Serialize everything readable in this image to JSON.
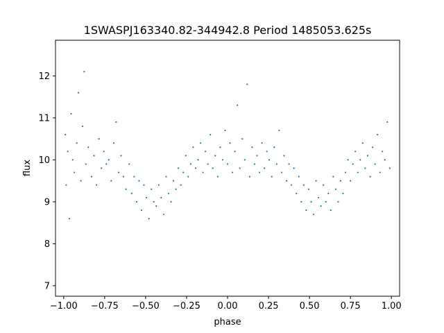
{
  "chart_data": {
    "type": "scatter",
    "title": "1SWASPJ163340.82-344942.8 Period 1485053.625s",
    "xlabel": "phase",
    "ylabel": "flux",
    "xlim": [
      -1.05,
      1.05
    ],
    "ylim": [
      6.75,
      12.85
    ],
    "x_ticks": [
      -1.0,
      -0.75,
      -0.5,
      -0.25,
      0.0,
      0.25,
      0.5,
      0.75,
      1.0
    ],
    "x_tick_labels": [
      "−1.00",
      "−0.75",
      "−0.50",
      "−0.25",
      "0.00",
      "0.25",
      "0.50",
      "0.75",
      "1.00"
    ],
    "y_ticks": [
      7,
      8,
      9,
      10,
      11,
      12
    ],
    "y_tick_labels": [
      "7",
      "8",
      "9",
      "10",
      "11",
      "12"
    ],
    "grid": false,
    "marker_color": "#1f77b4",
    "series": [
      {
        "points": [
          [
            -0.99,
            10.6
          ],
          [
            -0.985,
            9.4
          ],
          [
            -0.975,
            10.2
          ],
          [
            -0.965,
            8.6
          ],
          [
            -0.955,
            11.1
          ],
          [
            -0.945,
            10.0
          ],
          [
            -0.935,
            9.7
          ],
          [
            -0.92,
            10.4
          ],
          [
            -0.91,
            11.6
          ],
          [
            -0.895,
            9.5
          ],
          [
            -0.885,
            10.8
          ],
          [
            -0.875,
            12.1
          ],
          [
            -0.865,
            9.9
          ],
          [
            -0.85,
            10.3
          ],
          [
            -0.83,
            9.6
          ],
          [
            -0.815,
            10.1
          ],
          [
            -0.8,
            9.4
          ],
          [
            -0.785,
            10.5
          ],
          [
            -0.77,
            9.8
          ],
          [
            -0.755,
            10.2
          ],
          [
            -0.74,
            9.9
          ],
          [
            -0.725,
            10.0
          ],
          [
            -0.71,
            9.5
          ],
          [
            -0.695,
            10.4
          ],
          [
            -0.68,
            10.9
          ],
          [
            -0.665,
            9.7
          ],
          [
            -0.65,
            10.1
          ],
          [
            -0.635,
            9.6
          ],
          [
            -0.62,
            9.3
          ],
          [
            -0.6,
            9.9
          ],
          [
            -0.585,
            9.2
          ],
          [
            -0.57,
            9.6
          ],
          [
            -0.555,
            9.0
          ],
          [
            -0.54,
            9.5
          ],
          [
            -0.525,
            8.8
          ],
          [
            -0.51,
            9.4
          ],
          [
            -0.495,
            9.1
          ],
          [
            -0.48,
            8.6
          ],
          [
            -0.465,
            9.3
          ],
          [
            -0.45,
            9.0
          ],
          [
            -0.435,
            8.9
          ],
          [
            -0.42,
            9.4
          ],
          [
            -0.405,
            9.1
          ],
          [
            -0.39,
            8.7
          ],
          [
            -0.375,
            9.6
          ],
          [
            -0.36,
            9.2
          ],
          [
            -0.345,
            9.0
          ],
          [
            -0.33,
            9.5
          ],
          [
            -0.315,
            9.3
          ],
          [
            -0.3,
            9.8
          ],
          [
            -0.285,
            9.4
          ],
          [
            -0.27,
            9.7
          ],
          [
            -0.255,
            10.1
          ],
          [
            -0.24,
            9.6
          ],
          [
            -0.225,
            9.9
          ],
          [
            -0.21,
            10.3
          ],
          [
            -0.195,
            9.8
          ],
          [
            -0.18,
            10.0
          ],
          [
            -0.165,
            10.4
          ],
          [
            -0.15,
            9.7
          ],
          [
            -0.135,
            10.2
          ],
          [
            -0.12,
            9.9
          ],
          [
            -0.105,
            10.6
          ],
          [
            -0.09,
            9.8
          ],
          [
            -0.075,
            10.1
          ],
          [
            -0.06,
            9.6
          ],
          [
            -0.045,
            10.3
          ],
          [
            -0.03,
            10.0
          ],
          [
            -0.015,
            10.7
          ],
          [
            0.0,
            9.9
          ],
          [
            0.015,
            10.4
          ],
          [
            0.03,
            9.7
          ],
          [
            0.045,
            10.2
          ],
          [
            0.06,
            11.3
          ],
          [
            0.075,
            9.8
          ],
          [
            0.09,
            10.5
          ],
          [
            0.105,
            10.0
          ],
          [
            0.12,
            11.8
          ],
          [
            0.135,
            9.6
          ],
          [
            0.15,
            10.3
          ],
          [
            0.165,
            9.9
          ],
          [
            0.18,
            10.1
          ],
          [
            0.195,
            9.7
          ],
          [
            0.21,
            10.4
          ],
          [
            0.225,
            9.8
          ],
          [
            0.24,
            10.2
          ],
          [
            0.255,
            10.0
          ],
          [
            0.27,
            9.6
          ],
          [
            0.285,
            10.3
          ],
          [
            0.3,
            9.9
          ],
          [
            0.315,
            10.7
          ],
          [
            0.33,
            9.7
          ],
          [
            0.345,
            10.1
          ],
          [
            0.36,
            9.5
          ],
          [
            0.375,
            9.9
          ],
          [
            0.39,
            9.4
          ],
          [
            0.405,
            9.8
          ],
          [
            0.42,
            9.2
          ],
          [
            0.435,
            9.6
          ],
          [
            0.45,
            9.0
          ],
          [
            0.465,
            9.4
          ],
          [
            0.48,
            8.8
          ],
          [
            0.495,
            9.3
          ],
          [
            0.51,
            9.0
          ],
          [
            0.525,
            8.7
          ],
          [
            0.54,
            9.5
          ],
          [
            0.555,
            9.1
          ],
          [
            0.57,
            8.9
          ],
          [
            0.585,
            9.4
          ],
          [
            0.6,
            9.0
          ],
          [
            0.615,
            9.2
          ],
          [
            0.63,
            8.8
          ],
          [
            0.645,
            9.6
          ],
          [
            0.66,
            9.3
          ],
          [
            0.675,
            9.0
          ],
          [
            0.69,
            9.5
          ],
          [
            0.705,
            9.2
          ],
          [
            0.72,
            9.7
          ],
          [
            0.735,
            10.0
          ],
          [
            0.75,
            9.5
          ],
          [
            0.765,
            9.9
          ],
          [
            0.78,
            10.2
          ],
          [
            0.795,
            9.7
          ],
          [
            0.81,
            10.0
          ],
          [
            0.825,
            10.4
          ],
          [
            0.84,
            9.8
          ],
          [
            0.855,
            10.1
          ],
          [
            0.87,
            9.6
          ],
          [
            0.885,
            10.3
          ],
          [
            0.9,
            9.9
          ],
          [
            0.915,
            10.6
          ],
          [
            0.93,
            9.7
          ],
          [
            0.945,
            10.2
          ],
          [
            0.96,
            10.0
          ],
          [
            0.975,
            10.9
          ],
          [
            0.99,
            9.8
          ]
        ]
      }
    ]
  }
}
